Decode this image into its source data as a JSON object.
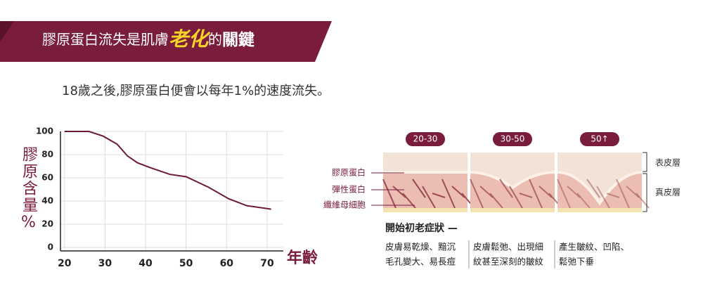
{
  "header": {
    "parts": [
      "膠原蛋白流失是肌膚",
      "老化",
      "的",
      "關鍵"
    ]
  },
  "intro": "18歲之後,膠原蛋白便會以每年1%的速度流失。",
  "chart_data": {
    "type": "line",
    "y_label": "膠原含量%",
    "x_label": "年齡",
    "x": [
      20,
      26,
      29.5,
      33,
      35.5,
      38,
      41,
      46,
      50,
      55.5,
      60.5,
      65,
      71
    ],
    "values": [
      100,
      100,
      96,
      89,
      79,
      73,
      69,
      63,
      61,
      52,
      42,
      36,
      33
    ],
    "color": "#6b1a35",
    "xlim": [
      19,
      74
    ],
    "ylim": [
      -3,
      100
    ],
    "xticks": [
      20,
      30,
      40,
      50,
      60,
      70
    ],
    "yticks": [
      0,
      20,
      40,
      60,
      80,
      100
    ],
    "grid": true
  },
  "diagram": {
    "stages": [
      "20-30",
      "30-50",
      "50↑"
    ],
    "left_labels": [
      "膠原蛋白",
      "彈性蛋白",
      "纖維母細胞"
    ],
    "right_labels": [
      "表皮層",
      "真皮層"
    ],
    "heading": "開始初老症狀 —",
    "symptoms": [
      [
        "皮膚易乾燥、黯沉",
        "毛孔變大、易長痘"
      ],
      [
        "皮膚鬆弛、出現細",
        "紋甚至深刻的皺紋"
      ],
      [
        "產生皺紋、凹陷、",
        "鬆弛下垂"
      ]
    ]
  }
}
